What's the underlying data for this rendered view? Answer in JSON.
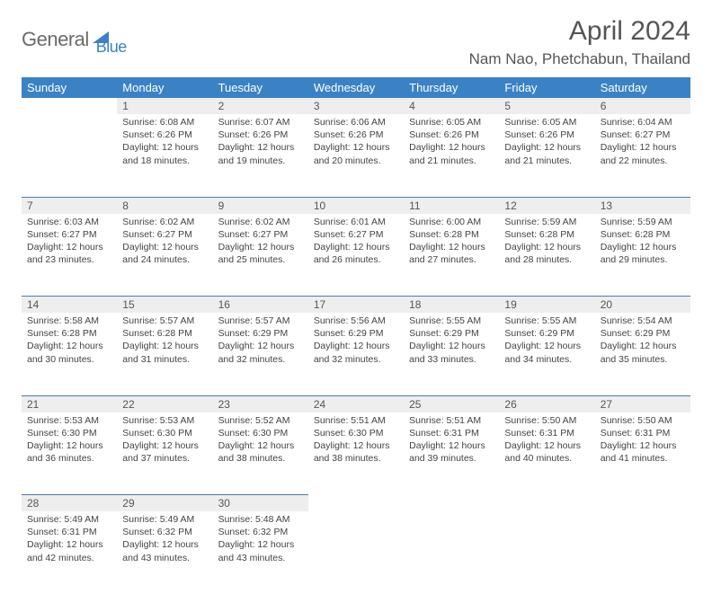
{
  "logo": {
    "text1": "General",
    "text2": "Blue",
    "color1": "#6b6b6b",
    "color2": "#3b82c4"
  },
  "title": "April 2024",
  "location": "Nam Nao, Phetchabun, Thailand",
  "colors": {
    "header_bg": "#3b82c4",
    "header_text": "#ffffff",
    "daynum_bg": "#eeeeee",
    "daynum_text": "#555555",
    "row_border": "#4c7ca8",
    "body_text": "#444444"
  },
  "fonts": {
    "title_size": 30,
    "location_size": 17,
    "weekday_size": 13,
    "daynum_size": 12,
    "cell_size": 10.5
  },
  "weekdays": [
    "Sunday",
    "Monday",
    "Tuesday",
    "Wednesday",
    "Thursday",
    "Friday",
    "Saturday"
  ],
  "weeks": [
    [
      null,
      {
        "d": "1",
        "sr": "6:08 AM",
        "ss": "6:26 PM",
        "dl": "12 hours and 18 minutes."
      },
      {
        "d": "2",
        "sr": "6:07 AM",
        "ss": "6:26 PM",
        "dl": "12 hours and 19 minutes."
      },
      {
        "d": "3",
        "sr": "6:06 AM",
        "ss": "6:26 PM",
        "dl": "12 hours and 20 minutes."
      },
      {
        "d": "4",
        "sr": "6:05 AM",
        "ss": "6:26 PM",
        "dl": "12 hours and 21 minutes."
      },
      {
        "d": "5",
        "sr": "6:05 AM",
        "ss": "6:26 PM",
        "dl": "12 hours and 21 minutes."
      },
      {
        "d": "6",
        "sr": "6:04 AM",
        "ss": "6:27 PM",
        "dl": "12 hours and 22 minutes."
      }
    ],
    [
      {
        "d": "7",
        "sr": "6:03 AM",
        "ss": "6:27 PM",
        "dl": "12 hours and 23 minutes."
      },
      {
        "d": "8",
        "sr": "6:02 AM",
        "ss": "6:27 PM",
        "dl": "12 hours and 24 minutes."
      },
      {
        "d": "9",
        "sr": "6:02 AM",
        "ss": "6:27 PM",
        "dl": "12 hours and 25 minutes."
      },
      {
        "d": "10",
        "sr": "6:01 AM",
        "ss": "6:27 PM",
        "dl": "12 hours and 26 minutes."
      },
      {
        "d": "11",
        "sr": "6:00 AM",
        "ss": "6:28 PM",
        "dl": "12 hours and 27 minutes."
      },
      {
        "d": "12",
        "sr": "5:59 AM",
        "ss": "6:28 PM",
        "dl": "12 hours and 28 minutes."
      },
      {
        "d": "13",
        "sr": "5:59 AM",
        "ss": "6:28 PM",
        "dl": "12 hours and 29 minutes."
      }
    ],
    [
      {
        "d": "14",
        "sr": "5:58 AM",
        "ss": "6:28 PM",
        "dl": "12 hours and 30 minutes."
      },
      {
        "d": "15",
        "sr": "5:57 AM",
        "ss": "6:28 PM",
        "dl": "12 hours and 31 minutes."
      },
      {
        "d": "16",
        "sr": "5:57 AM",
        "ss": "6:29 PM",
        "dl": "12 hours and 32 minutes."
      },
      {
        "d": "17",
        "sr": "5:56 AM",
        "ss": "6:29 PM",
        "dl": "12 hours and 32 minutes."
      },
      {
        "d": "18",
        "sr": "5:55 AM",
        "ss": "6:29 PM",
        "dl": "12 hours and 33 minutes."
      },
      {
        "d": "19",
        "sr": "5:55 AM",
        "ss": "6:29 PM",
        "dl": "12 hours and 34 minutes."
      },
      {
        "d": "20",
        "sr": "5:54 AM",
        "ss": "6:29 PM",
        "dl": "12 hours and 35 minutes."
      }
    ],
    [
      {
        "d": "21",
        "sr": "5:53 AM",
        "ss": "6:30 PM",
        "dl": "12 hours and 36 minutes."
      },
      {
        "d": "22",
        "sr": "5:53 AM",
        "ss": "6:30 PM",
        "dl": "12 hours and 37 minutes."
      },
      {
        "d": "23",
        "sr": "5:52 AM",
        "ss": "6:30 PM",
        "dl": "12 hours and 38 minutes."
      },
      {
        "d": "24",
        "sr": "5:51 AM",
        "ss": "6:30 PM",
        "dl": "12 hours and 38 minutes."
      },
      {
        "d": "25",
        "sr": "5:51 AM",
        "ss": "6:31 PM",
        "dl": "12 hours and 39 minutes."
      },
      {
        "d": "26",
        "sr": "5:50 AM",
        "ss": "6:31 PM",
        "dl": "12 hours and 40 minutes."
      },
      {
        "d": "27",
        "sr": "5:50 AM",
        "ss": "6:31 PM",
        "dl": "12 hours and 41 minutes."
      }
    ],
    [
      {
        "d": "28",
        "sr": "5:49 AM",
        "ss": "6:31 PM",
        "dl": "12 hours and 42 minutes."
      },
      {
        "d": "29",
        "sr": "5:49 AM",
        "ss": "6:32 PM",
        "dl": "12 hours and 43 minutes."
      },
      {
        "d": "30",
        "sr": "5:48 AM",
        "ss": "6:32 PM",
        "dl": "12 hours and 43 minutes."
      },
      null,
      null,
      null,
      null
    ]
  ],
  "labels": {
    "sunrise": "Sunrise:",
    "sunset": "Sunset:",
    "daylight": "Daylight:"
  }
}
